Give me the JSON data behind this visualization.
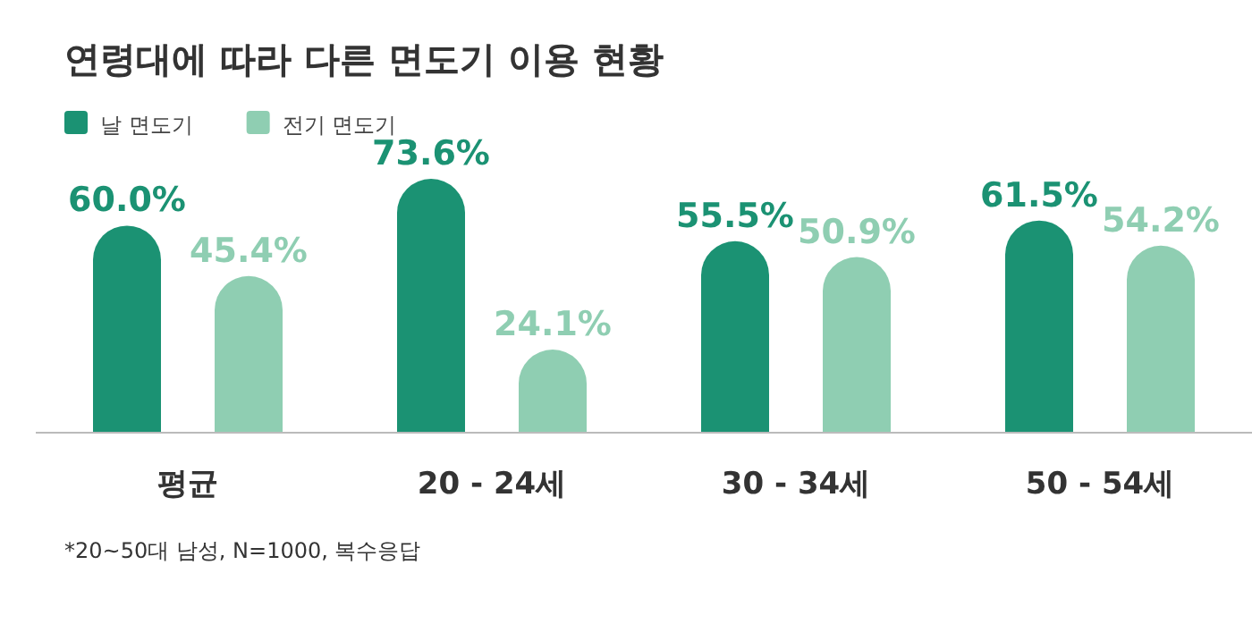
{
  "chart_data": {
    "type": "bar",
    "title": "연령대에 따라 다른 면도기 이용 현황",
    "categories": [
      "평균",
      "20 - 24세",
      "30 - 34세",
      "50 - 54세"
    ],
    "series": [
      {
        "name": "날 면도기",
        "color": "#1b9273",
        "values": [
          60.0,
          73.6,
          55.5,
          61.5
        ],
        "value_labels": [
          "60.0%",
          "73.6%",
          "55.5%",
          "61.5%"
        ]
      },
      {
        "name": "전기 면도기",
        "color": "#8fceb2",
        "values": [
          45.4,
          24.1,
          50.9,
          54.2
        ],
        "value_labels": [
          "45.4%",
          "24.1%",
          "50.9%",
          "54.2%"
        ]
      }
    ],
    "legend": "top left",
    "annotations": [
      "*20~50대 남성, N=1000, 복수응답"
    ]
  }
}
